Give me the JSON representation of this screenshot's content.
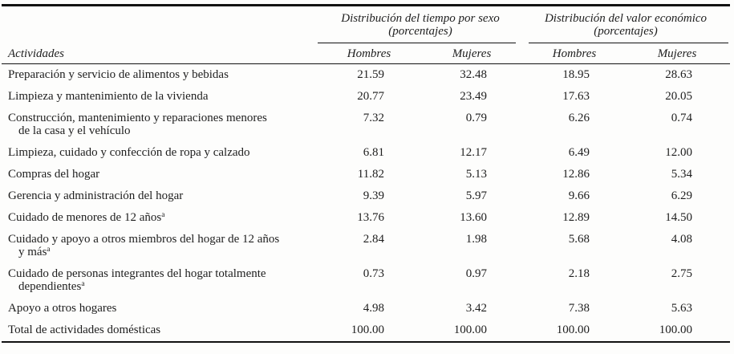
{
  "colors": {
    "text": "#1e1e1e",
    "rule": "#121212",
    "background": "#fdfdfc"
  },
  "table": {
    "activities_header": "Actividades",
    "groups": [
      {
        "title": "Distribución del tiempo por sexo",
        "subtitle": "(porcentajes)",
        "columns": [
          "Hombres",
          "Mujeres"
        ]
      },
      {
        "title": "Distribución del valor económico",
        "subtitle": "(porcentajes)",
        "columns": [
          "Hombres",
          "Mujeres"
        ]
      }
    ],
    "rows": [
      {
        "lines": [
          "Preparación y servicio de alimentos y bebidas"
        ],
        "footnote_mark": null,
        "values": [
          "21.59",
          "32.48",
          "18.95",
          "28.63"
        ]
      },
      {
        "lines": [
          "Limpieza y mantenimiento de la vivienda"
        ],
        "footnote_mark": null,
        "values": [
          "20.77",
          "23.49",
          "17.63",
          "20.05"
        ]
      },
      {
        "lines": [
          "Construcción, mantenimiento y reparaciones menores",
          "de la casa y el vehículo"
        ],
        "footnote_mark": null,
        "values": [
          "7.32",
          "0.79",
          "6.26",
          "0.74"
        ]
      },
      {
        "lines": [
          "Limpieza, cuidado y confección de ropa y calzado"
        ],
        "footnote_mark": null,
        "values": [
          "6.81",
          "12.17",
          "6.49",
          "12.00"
        ]
      },
      {
        "lines": [
          "Compras del hogar"
        ],
        "footnote_mark": null,
        "values": [
          "11.82",
          "5.13",
          "12.86",
          "5.34"
        ]
      },
      {
        "lines": [
          "Gerencia y administración del hogar"
        ],
        "footnote_mark": null,
        "values": [
          "9.39",
          "5.97",
          "9.66",
          "6.29"
        ]
      },
      {
        "lines": [
          "Cuidado de menores de 12 años"
        ],
        "footnote_mark": "a",
        "values": [
          "13.76",
          "13.60",
          "12.89",
          "14.50"
        ]
      },
      {
        "lines": [
          "Cuidado y apoyo a otros miembros del hogar de 12 años",
          "y más"
        ],
        "footnote_mark": "a",
        "values": [
          "2.84",
          "1.98",
          "5.68",
          "4.08"
        ]
      },
      {
        "lines": [
          "Cuidado de personas integrantes del hogar totalmente",
          "dependientes"
        ],
        "footnote_mark": "a",
        "values": [
          "0.73",
          "0.97",
          "2.18",
          "2.75"
        ]
      },
      {
        "lines": [
          "Apoyo a otros hogares"
        ],
        "footnote_mark": null,
        "values": [
          "4.98",
          "3.42",
          "7.38",
          "5.63"
        ]
      },
      {
        "lines": [
          "Total de actividades domésticas"
        ],
        "footnote_mark": null,
        "values": [
          "100.00",
          "100.00",
          "100.00",
          "100.00"
        ]
      }
    ]
  }
}
